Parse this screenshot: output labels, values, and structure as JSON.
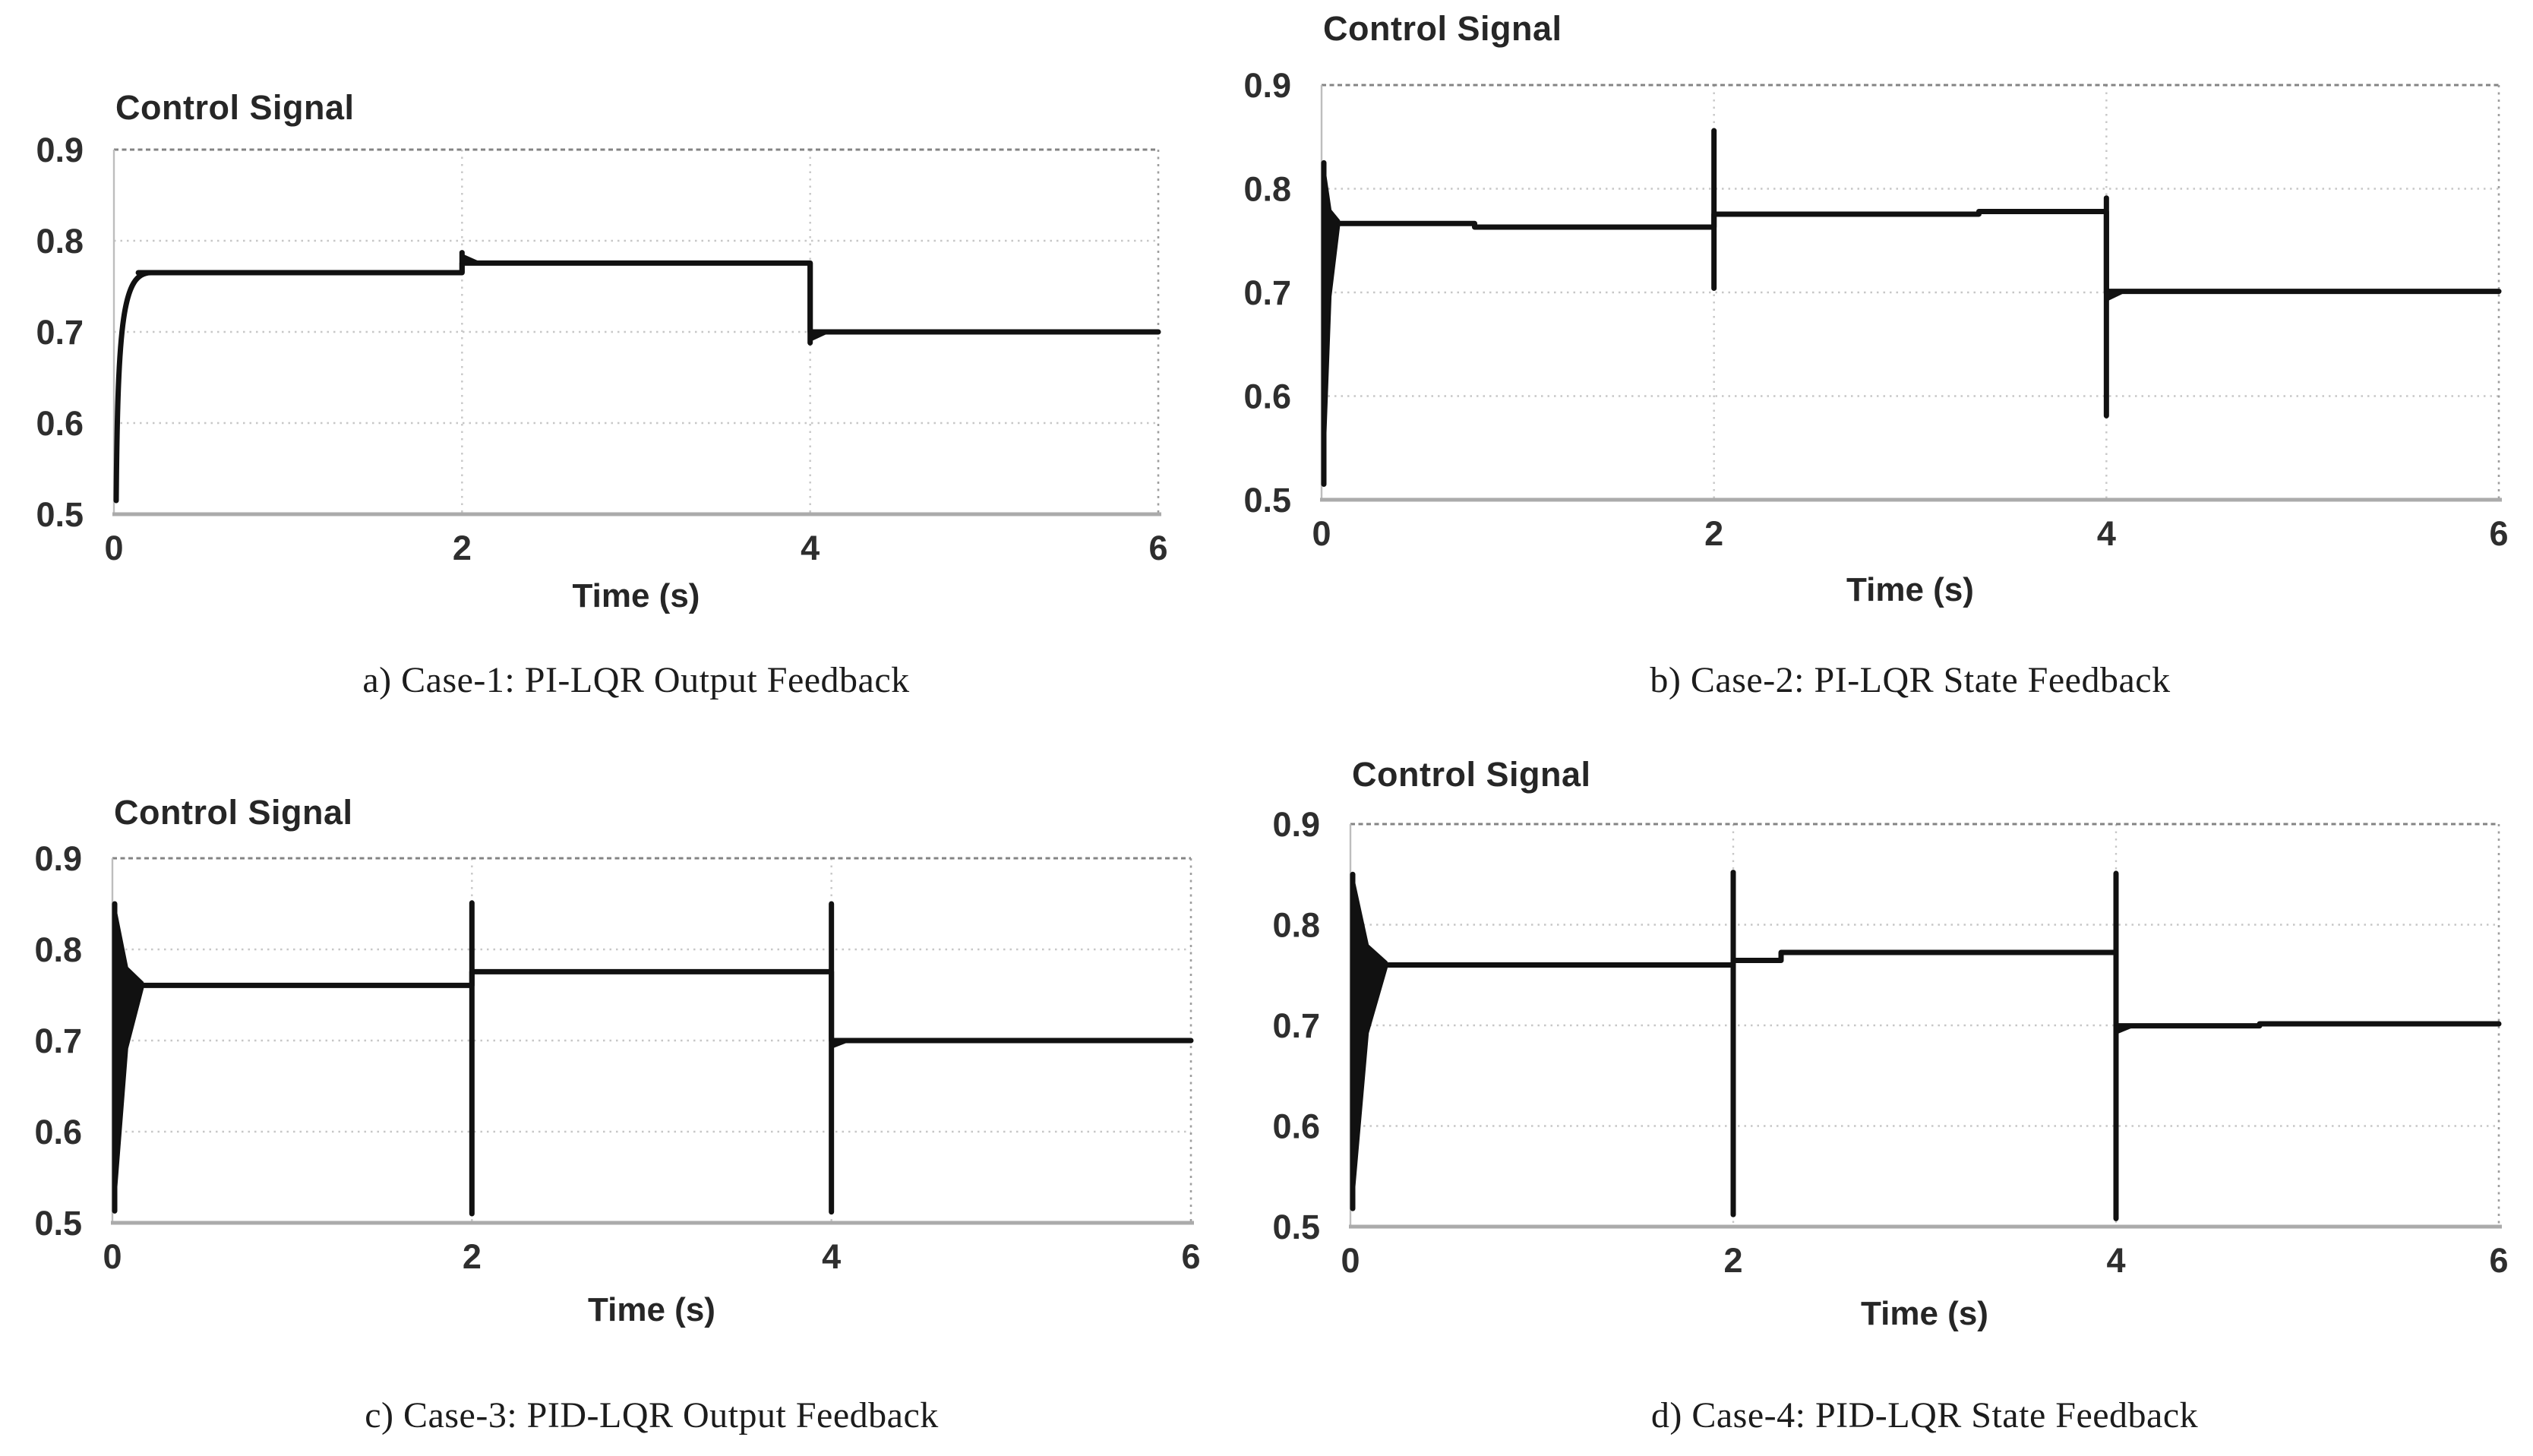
{
  "page": {
    "background": "#ffffff"
  },
  "colors": {
    "signal": "#111111",
    "grid": "#c7c7c7",
    "border_top": "#848484",
    "border_right": "#9e9e9e",
    "border_left": "#bdbdbd",
    "axis_bottom": "#ababab",
    "tick_text": "#2e2e2e",
    "caption_text": "#1c1c1c"
  },
  "chart_data": [
    {
      "id": "a",
      "type": "line",
      "title": "Control Signal",
      "xlabel": "Time (s)",
      "caption": "a) Case-1: PI-LQR Output Feedback",
      "xlim": [
        0,
        6
      ],
      "ylim": [
        0.5,
        0.9
      ],
      "xtick_values": [
        0,
        2,
        4,
        6
      ],
      "xtick_labels": [
        "0",
        "2",
        "4",
        "6"
      ],
      "ytick_values": [
        0.5,
        0.6,
        0.7,
        0.8,
        0.9
      ],
      "ytick_labels": [
        "0.5",
        "0.6",
        "0.7",
        "0.8",
        "0.9"
      ],
      "grid": "dotted",
      "initial": {
        "type": "rise",
        "start": 0.515,
        "t_end": 0.16,
        "settle": 0.765
      },
      "levels": [
        [
          0.14,
          0.765
        ],
        [
          2,
          0.765
        ],
        [
          2,
          0.7755
        ],
        [
          4,
          0.7755
        ],
        [
          4,
          0.7
        ],
        [
          6,
          0.7
        ]
      ],
      "spikes": [
        {
          "t": 2,
          "hi": 0.787,
          "lo": 0.7655,
          "settle": 0.7755,
          "taper": "up",
          "taper_v": 0.787
        },
        {
          "t": 4,
          "hi": 0.7755,
          "lo": 0.688,
          "settle": 0.7,
          "taper": "down",
          "taper_v": 0.688
        }
      ]
    },
    {
      "id": "b",
      "type": "line",
      "title": "Control Signal",
      "xlabel": "Time (s)",
      "caption": "b) Case-2: PI-LQR State Feedback",
      "xlim": [
        0,
        6
      ],
      "ylim": [
        0.5,
        0.9
      ],
      "xtick_values": [
        0,
        2,
        4,
        6
      ],
      "xtick_labels": [
        "0",
        "2",
        "4",
        "6"
      ],
      "ytick_values": [
        0.5,
        0.6,
        0.7,
        0.8,
        0.9
      ],
      "ytick_labels": [
        "0.5",
        "0.6",
        "0.7",
        "0.8",
        "0.9"
      ],
      "grid": "dotted",
      "initial": {
        "type": "oscillation",
        "min": 0.515,
        "max": 0.825,
        "t_end": 0.09,
        "settle": 0.7665
      },
      "levels": [
        [
          0.09,
          0.7665
        ],
        [
          0.78,
          0.7665
        ],
        [
          0.78,
          0.763
        ],
        [
          2,
          0.763
        ],
        [
          2,
          0.7755
        ],
        [
          3.35,
          0.7755
        ],
        [
          3.35,
          0.778
        ],
        [
          4,
          0.778
        ],
        [
          4,
          0.701
        ],
        [
          6,
          0.701
        ]
      ],
      "spikes": [
        {
          "t": 2,
          "hi": 0.856,
          "lo": 0.704,
          "settle": 0.7755,
          "taper": "none",
          "taper_v": null
        },
        {
          "t": 4,
          "hi": 0.791,
          "lo": 0.581,
          "settle": 0.701,
          "taper": "down",
          "taper_v": 0.69
        }
      ]
    },
    {
      "id": "c",
      "type": "line",
      "title": "Control Signal",
      "xlabel": "Time (s)",
      "caption": "c) Case-3: PID-LQR Output Feedback",
      "xlim": [
        0,
        6
      ],
      "ylim": [
        0.5,
        0.9
      ],
      "xtick_values": [
        0,
        2,
        4,
        6
      ],
      "xtick_labels": [
        "0",
        "2",
        "4",
        "6"
      ],
      "ytick_values": [
        0.5,
        0.6,
        0.7,
        0.8,
        0.9
      ],
      "ytick_labels": [
        "0.5",
        "0.6",
        "0.7",
        "0.8",
        "0.9"
      ],
      "grid": "dotted",
      "initial": {
        "type": "oscillation",
        "min": 0.513,
        "max": 0.85,
        "t_end": 0.17,
        "settle": 0.7605
      },
      "levels": [
        [
          0.17,
          0.7605
        ],
        [
          2,
          0.7605
        ],
        [
          2,
          0.7755
        ],
        [
          4,
          0.7755
        ],
        [
          4,
          0.7
        ],
        [
          6,
          0.7
        ]
      ],
      "spikes": [
        {
          "t": 2,
          "hi": 0.851,
          "lo": 0.51,
          "settle": 0.7755,
          "taper": "none",
          "taper_v": null
        },
        {
          "t": 4,
          "hi": 0.85,
          "lo": 0.512,
          "settle": 0.7,
          "taper": "down",
          "taper_v": 0.69
        }
      ]
    },
    {
      "id": "d",
      "type": "line",
      "title": "Control Signal",
      "xlabel": "Time (s)",
      "caption": "d) Case-4: PID-LQR State Feedback",
      "xlim": [
        0,
        6
      ],
      "ylim": [
        0.5,
        0.9
      ],
      "xtick_values": [
        0,
        2,
        4,
        6
      ],
      "xtick_labels": [
        "0",
        "2",
        "4",
        "6"
      ],
      "ytick_values": [
        0.5,
        0.6,
        0.7,
        0.8,
        0.9
      ],
      "ytick_labels": [
        "0.5",
        "0.6",
        "0.7",
        "0.8",
        "0.9"
      ],
      "grid": "dotted",
      "initial": {
        "type": "oscillation",
        "min": 0.518,
        "max": 0.85,
        "t_end": 0.19,
        "settle": 0.76
      },
      "levels": [
        [
          0.19,
          0.76
        ],
        [
          2,
          0.76
        ],
        [
          2,
          0.7645
        ],
        [
          2.25,
          0.7645
        ],
        [
          2.25,
          0.7725
        ],
        [
          4,
          0.7725
        ],
        [
          4,
          0.6995
        ],
        [
          4.75,
          0.6995
        ],
        [
          4.75,
          0.7015
        ],
        [
          6,
          0.7015
        ]
      ],
      "spikes": [
        {
          "t": 2,
          "hi": 0.852,
          "lo": 0.512,
          "settle": 0.7725,
          "taper": "none",
          "taper_v": null
        },
        {
          "t": 4,
          "hi": 0.851,
          "lo": 0.508,
          "settle": 0.6995,
          "taper": "down",
          "taper_v": 0.69
        }
      ]
    }
  ]
}
